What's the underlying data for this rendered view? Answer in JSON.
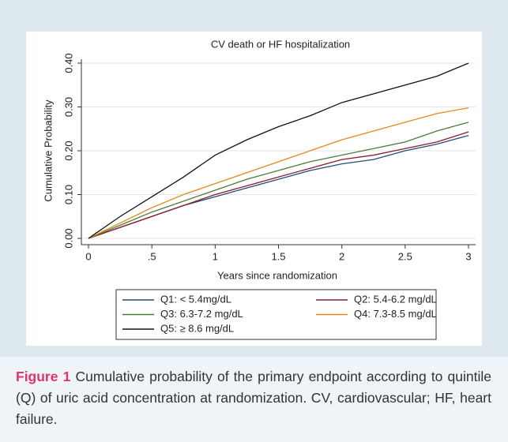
{
  "chart_data": {
    "type": "line",
    "title": "CV death or HF hospitalization",
    "x_label": "Years since randomization",
    "y_label": "Cumulative Probability",
    "x": [
      0,
      0.25,
      0.5,
      0.75,
      1,
      1.25,
      1.5,
      1.75,
      2,
      2.25,
      2.5,
      2.75,
      3
    ],
    "series": [
      {
        "name": "Q1: < 5.4mg/dL",
        "color": "#1f4e79",
        "values": [
          0,
          0.025,
          0.05,
          0.075,
          0.095,
          0.115,
          0.135,
          0.155,
          0.17,
          0.18,
          0.2,
          0.215,
          0.235
        ]
      },
      {
        "name": "Q2: 5.4-6.2 mg/dL",
        "color": "#8b1a2b",
        "values": [
          0,
          0.025,
          0.05,
          0.075,
          0.1,
          0.12,
          0.14,
          0.16,
          0.18,
          0.19,
          0.205,
          0.22,
          0.243
        ]
      },
      {
        "name": "Q3: 6.3-7.2 mg/dL",
        "color": "#4e7a3a",
        "values": [
          0,
          0.03,
          0.06,
          0.085,
          0.11,
          0.135,
          0.155,
          0.175,
          0.19,
          0.205,
          0.22,
          0.245,
          0.265
        ]
      },
      {
        "name": "Q4: 7.3-8.5 mg/dL",
        "color": "#e08a1e",
        "values": [
          0,
          0.035,
          0.07,
          0.1,
          0.125,
          0.15,
          0.175,
          0.2,
          0.225,
          0.245,
          0.265,
          0.285,
          0.298
        ]
      },
      {
        "name": "Q5: ≥ 8.6 mg/dL",
        "color": "#111111",
        "values": [
          0,
          0.05,
          0.095,
          0.14,
          0.19,
          0.225,
          0.255,
          0.28,
          0.31,
          0.33,
          0.35,
          0.37,
          0.4
        ]
      }
    ],
    "xlim": [
      0,
      3
    ],
    "xticks": [
      0,
      {
        "value": 0.5,
        "label": ".5"
      },
      1,
      1.5,
      2,
      2.5,
      3
    ],
    "ylim": [
      0,
      0.4
    ],
    "yticks": [
      {
        "value": 0,
        "label": "0.00"
      },
      {
        "value": 0.1,
        "label": "0.10"
      },
      {
        "value": 0.2,
        "label": "0.20"
      },
      {
        "value": 0.3,
        "label": "0.30"
      },
      {
        "value": 0.4,
        "label": "0.40"
      }
    ],
    "grid": true
  },
  "caption": {
    "label": "Figure 1",
    "text": "Cumulative probability of the primary endpoint according to quintile (Q) of uric acid concentration at randomization. CV, cardiovascular; HF, heart failure."
  }
}
